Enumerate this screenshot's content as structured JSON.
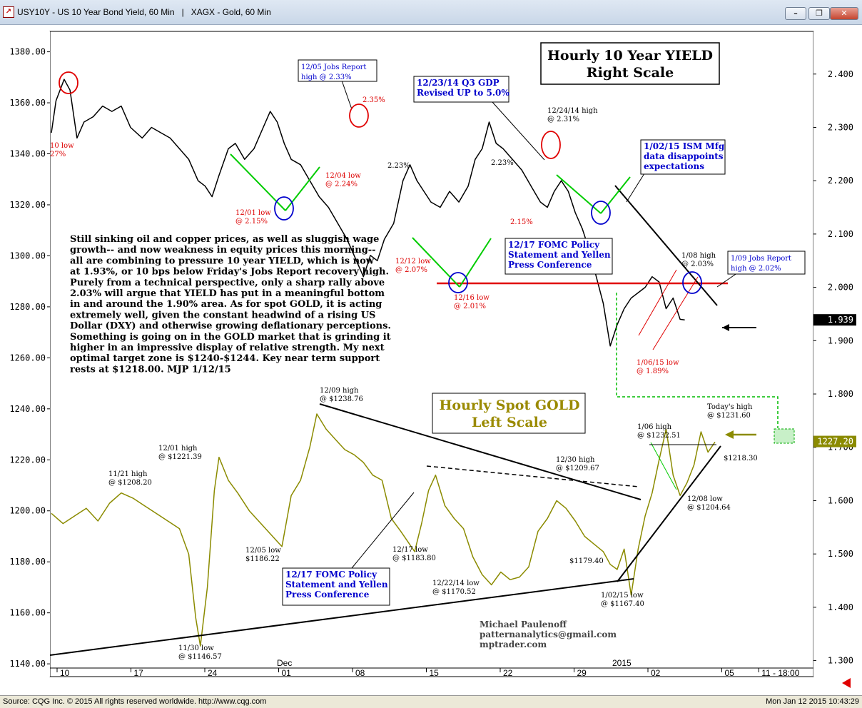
{
  "window": {
    "title": "USY10Y - US 10 Year Bond Yield, 60 Min   |   XAGX - Gold, 60 Min",
    "minimize_label": "–",
    "restore_label": "❐",
    "close_label": "✕"
  },
  "status": {
    "left": "Source: CQG Inc. © 2015 All rights reserved worldwide. http://www.cqg.com",
    "right": "Mon Jan 12 2015 10:43:29"
  },
  "chart_data": {
    "type": "line",
    "x_axis": {
      "tick_labels": [
        "10",
        "17",
        "24",
        "01",
        "08",
        "15",
        "22",
        "29",
        "02",
        "05",
        "11 - 18:00"
      ],
      "period_labels": [
        "Dec",
        "2015"
      ]
    },
    "left_axis": {
      "name": "Gold",
      "range": [
        1135,
        1388
      ],
      "tick_labels": [
        "1380.00",
        "1360.00",
        "1340.00",
        "1320.00",
        "1300.00",
        "1280.00",
        "1260.00",
        "1240.00",
        "1220.00",
        "1200.00",
        "1180.00",
        "1160.00",
        "1140.00"
      ],
      "last_value_label": "1227.20"
    },
    "right_axis": {
      "name": "10 Year Yield",
      "range": [
        1.27,
        2.48
      ],
      "tick_labels": [
        "2.400",
        "2.300",
        "2.200",
        "2.100",
        "2.000",
        "1.900",
        "1.800",
        "1.700",
        "1.600",
        "1.500",
        "1.400",
        "1.300"
      ],
      "last_value_label": "1.939"
    },
    "series": [
      {
        "axis": "right",
        "color": "#000000",
        "points": [
          [
            0,
            2.29
          ],
          [
            0.2,
            2.35
          ],
          [
            0.55,
            2.39
          ],
          [
            0.8,
            2.37
          ],
          [
            1.1,
            2.28
          ],
          [
            1.4,
            2.31
          ],
          [
            1.8,
            2.32
          ],
          [
            2.2,
            2.34
          ],
          [
            2.6,
            2.33
          ],
          [
            3.0,
            2.34
          ],
          [
            3.4,
            2.3
          ],
          [
            3.9,
            2.28
          ],
          [
            4.3,
            2.3
          ],
          [
            4.7,
            2.29
          ],
          [
            5.1,
            2.28
          ],
          [
            5.5,
            2.26
          ],
          [
            5.9,
            2.24
          ],
          [
            6.3,
            2.2
          ],
          [
            6.6,
            2.19
          ],
          [
            6.9,
            2.17
          ],
          [
            7.2,
            2.21
          ],
          [
            7.6,
            2.26
          ],
          [
            7.9,
            2.27
          ],
          [
            8.3,
            2.24
          ],
          [
            8.7,
            2.26
          ],
          [
            9.1,
            2.3
          ],
          [
            9.4,
            2.33
          ],
          [
            9.7,
            2.31
          ],
          [
            10.0,
            2.27
          ],
          [
            10.3,
            2.24
          ],
          [
            10.7,
            2.23
          ],
          [
            11.1,
            2.2
          ],
          [
            11.5,
            2.17
          ],
          [
            11.9,
            2.15
          ],
          [
            12.3,
            2.12
          ],
          [
            12.7,
            2.09
          ],
          [
            13.1,
            2.05
          ],
          [
            13.4,
            2.02
          ],
          [
            13.7,
            2.06
          ],
          [
            14.0,
            2.05
          ],
          [
            14.3,
            2.09
          ],
          [
            14.7,
            2.12
          ],
          [
            15.1,
            2.2
          ],
          [
            15.4,
            2.23
          ],
          [
            15.7,
            2.2
          ],
          [
            16.0,
            2.18
          ],
          [
            16.3,
            2.16
          ],
          [
            16.7,
            2.15
          ],
          [
            17.1,
            2.18
          ],
          [
            17.5,
            2.16
          ],
          [
            17.9,
            2.19
          ],
          [
            18.2,
            2.24
          ],
          [
            18.5,
            2.26
          ],
          [
            18.8,
            2.31
          ],
          [
            19.1,
            2.27
          ],
          [
            19.4,
            2.26
          ],
          [
            19.8,
            2.24
          ],
          [
            20.2,
            2.22
          ],
          [
            20.6,
            2.19
          ],
          [
            21.0,
            2.16
          ],
          [
            21.3,
            2.15
          ],
          [
            21.6,
            2.18
          ],
          [
            21.9,
            2.2
          ],
          [
            22.2,
            2.18
          ],
          [
            22.5,
            2.14
          ],
          [
            22.8,
            2.11
          ],
          [
            23.1,
            2.07
          ],
          [
            23.4,
            2.02
          ],
          [
            23.7,
            1.97
          ],
          [
            24.0,
            1.89
          ],
          [
            24.3,
            1.93
          ],
          [
            24.6,
            1.96
          ],
          [
            24.9,
            1.98
          ],
          [
            25.2,
            1.99
          ],
          [
            25.5,
            2.0
          ],
          [
            25.8,
            2.02
          ],
          [
            26.1,
            2.01
          ],
          [
            26.4,
            1.96
          ],
          [
            26.7,
            1.98
          ],
          [
            27.0,
            1.94
          ],
          [
            27.2,
            1.939
          ]
        ]
      },
      {
        "axis": "left",
        "color": "#8b8b00",
        "points": [
          [
            0,
            1199
          ],
          [
            0.5,
            1195
          ],
          [
            1.0,
            1198
          ],
          [
            1.5,
            1201
          ],
          [
            2.0,
            1196
          ],
          [
            2.5,
            1203
          ],
          [
            3.0,
            1207
          ],
          [
            3.5,
            1205
          ],
          [
            4.0,
            1202
          ],
          [
            4.5,
            1199
          ],
          [
            5.0,
            1196
          ],
          [
            5.5,
            1193
          ],
          [
            5.9,
            1183
          ],
          [
            6.2,
            1158
          ],
          [
            6.4,
            1147
          ],
          [
            6.7,
            1170
          ],
          [
            7.0,
            1208
          ],
          [
            7.2,
            1221
          ],
          [
            7.6,
            1212
          ],
          [
            8.0,
            1207
          ],
          [
            8.5,
            1200
          ],
          [
            9.0,
            1195
          ],
          [
            9.5,
            1190
          ],
          [
            9.9,
            1186
          ],
          [
            10.3,
            1206
          ],
          [
            10.7,
            1212
          ],
          [
            11.1,
            1225
          ],
          [
            11.4,
            1238
          ],
          [
            11.8,
            1232
          ],
          [
            12.2,
            1228
          ],
          [
            12.6,
            1224
          ],
          [
            13.0,
            1222
          ],
          [
            13.4,
            1219
          ],
          [
            13.8,
            1214
          ],
          [
            14.2,
            1212
          ],
          [
            14.6,
            1197
          ],
          [
            15.0,
            1192
          ],
          [
            15.3,
            1188
          ],
          [
            15.6,
            1184
          ],
          [
            15.9,
            1195
          ],
          [
            16.2,
            1208
          ],
          [
            16.5,
            1214
          ],
          [
            16.9,
            1202
          ],
          [
            17.3,
            1197
          ],
          [
            17.7,
            1193
          ],
          [
            18.1,
            1182
          ],
          [
            18.5,
            1175
          ],
          [
            18.9,
            1171
          ],
          [
            19.3,
            1176
          ],
          [
            19.7,
            1173
          ],
          [
            20.1,
            1174
          ],
          [
            20.5,
            1178
          ],
          [
            20.9,
            1192
          ],
          [
            21.3,
            1197
          ],
          [
            21.7,
            1204
          ],
          [
            22.1,
            1201
          ],
          [
            22.5,
            1196
          ],
          [
            22.9,
            1190
          ],
          [
            23.3,
            1187
          ],
          [
            23.7,
            1184
          ],
          [
            24.0,
            1179
          ],
          [
            24.3,
            1177
          ],
          [
            24.6,
            1185
          ],
          [
            24.9,
            1167
          ],
          [
            25.2,
            1185
          ],
          [
            25.5,
            1198
          ],
          [
            25.8,
            1207
          ],
          [
            26.1,
            1220
          ],
          [
            26.4,
            1232
          ],
          [
            26.7,
            1214
          ],
          [
            27.0,
            1206
          ],
          [
            27.3,
            1211
          ],
          [
            27.6,
            1218
          ],
          [
            27.9,
            1231
          ],
          [
            28.2,
            1223
          ],
          [
            28.5,
            1227
          ]
        ]
      }
    ],
    "annotations": {
      "yield_title": [
        "Hourly 10 Year YIELD",
        "Right Scale"
      ],
      "gold_title": [
        "Hourly Spot GOLD",
        "Left Scale"
      ],
      "commentary": [
        "Still sinking oil and copper prices, as well as sluggish wage",
        "growth-- and now weakness in equity prices this morning--",
        "all are combining to pressure 10 year YIELD, which is now",
        "at 1.93%, or 10 bps below Friday's Jobs Report recovery high.",
        "Purely from a technical perspective, only a sharp rally above",
        "2.03% will argue that YIELD has put in a meaningful bottom",
        "in and around the 1.90% area. As for spot GOLD, it is acting",
        "extremely well, given the constant headwind of a rising US",
        "Dollar (DXY) and otherwise growing deflationary perceptions.",
        "Something is going on in the GOLD market that is grinding it",
        "higher in an impressive display of relative strength. My next",
        "optimal target zone is $1240-$1244. Key near term support",
        "rests at $1218.00. MJP 1/12/15"
      ],
      "boxed_blue": [
        [
          "12/05 Jobs Report",
          "high @ 2.33%"
        ],
        [
          "12/23/14 Q3 GDP",
          "Revised UP to 5.0%"
        ],
        [
          "1/02/15 ISM Mfg",
          "data disappoints",
          "expectations"
        ],
        [
          "12/17 FOMC Policy",
          "Statement and Yellen",
          "Press Conference"
        ],
        [
          "1/09 Jobs Report",
          "high @ 2.02%"
        ],
        [
          "12/17 FOMC Policy",
          "Statement and Yellen",
          "Press Conference"
        ]
      ],
      "red_labels": [
        [
          "10 low",
          "27%"
        ],
        [
          "2.35%"
        ],
        [
          "12/04 low",
          "@ 2.24%"
        ],
        [
          "12/01 low",
          "@ 2.15%"
        ],
        [
          "12/12 low",
          "@ 2.07%"
        ],
        [
          "12/16 low",
          "@ 2.01%"
        ],
        [
          "2.15%"
        ],
        [
          "1/06/15 low",
          "@ 1.89%"
        ]
      ],
      "black_labels": [
        [
          "2.23%"
        ],
        [
          "2.23%"
        ],
        [
          "12/24/14 high",
          "@ 2.31%"
        ],
        [
          "1/08 high",
          "@ 2.03%"
        ],
        [
          "12/09 high",
          "@ $1238.76"
        ],
        [
          "12/01 high",
          "@ $1221.39"
        ],
        [
          "11/21 high",
          "@ $1208.20"
        ],
        [
          "12/05 low",
          "$1186.22"
        ],
        [
          "11/30 low",
          "@ $1146.57"
        ],
        [
          "12/17 low",
          "@ $1183.80"
        ],
        [
          "12/22/14 low",
          "@ $1170.52"
        ],
        [
          "12/30 high",
          "@ $1209.67"
        ],
        [
          "$1179.40"
        ],
        [
          "1/02/15 low",
          "@ $1167.40"
        ],
        [
          "1/06 high",
          "@ $1232.51"
        ],
        [
          "Today's high",
          "@ $1231.60"
        ],
        [
          "$1218.30"
        ],
        [
          "12/08 low",
          "@ $1204.64"
        ]
      ],
      "signature": [
        "Michael Paulenoff",
        "patternanalytics@gmail.com",
        "mptrader.com"
      ]
    }
  }
}
